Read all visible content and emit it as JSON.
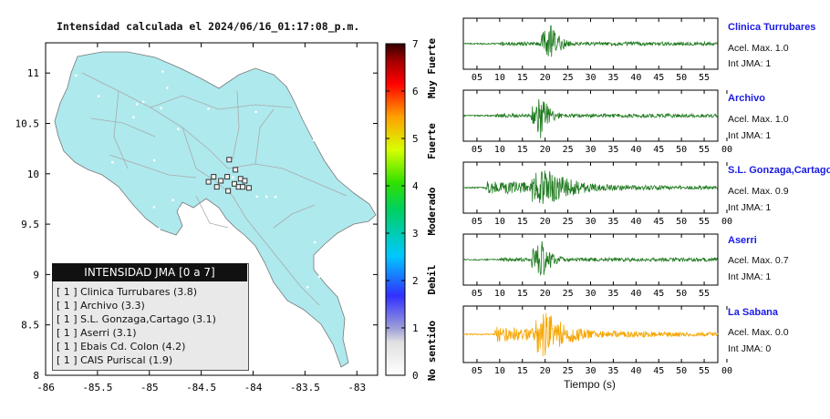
{
  "map": {
    "title": "Intensidad calculada el 2024/06/16_01:17:08_p.m.",
    "x_ticks": [
      "-86",
      "-85.5",
      "-85",
      "-84.5",
      "-84",
      "-83.5",
      "-83"
    ],
    "y_ticks": [
      "11",
      "10.5",
      "10",
      "9.5",
      "9",
      "8.5",
      "8"
    ],
    "colors": {
      "land": "#aee9ed",
      "water": "#ffffff",
      "roads": "#aaaaaa"
    }
  },
  "legend": {
    "title": "INTENSIDAD JMA [0 a 7]",
    "rows": [
      "[ 1 ]  Clinica Turrubares (3.8)",
      "[ 1 ]  Archivo (3.3)",
      "[ 1 ]  S.L. Gonzaga,Cartago (3.1)",
      "[ 1 ]  Aserri (3.1)",
      "[ 1 ]  Ebais Cd. Colon (4.2)",
      "[ 1 ]  CAIS Puriscal (1.9)"
    ]
  },
  "colorbar": {
    "ticks": [
      "0",
      "1",
      "2",
      "3",
      "4",
      "5",
      "6",
      "7"
    ],
    "labels": [
      "No sentido",
      "Debil",
      "Moderado",
      "Fuerte",
      "Muy Fuerte"
    ]
  },
  "chart_data": {
    "type": "scatter",
    "title": "Intensidad calculada el 2024/06/16_01:17:08_p.m.",
    "xlim": [
      -86,
      -82.8
    ],
    "ylim": [
      8,
      11.3
    ],
    "stations": [
      {
        "lon": -84.23,
        "lat": 10.14
      },
      {
        "lon": -84.17,
        "lat": 10.04
      },
      {
        "lon": -84.38,
        "lat": 9.97
      },
      {
        "lon": -84.25,
        "lat": 9.97
      },
      {
        "lon": -84.12,
        "lat": 9.95
      },
      {
        "lon": -84.43,
        "lat": 9.92
      },
      {
        "lon": -84.31,
        "lat": 9.93
      },
      {
        "lon": -84.18,
        "lat": 9.9
      },
      {
        "lon": -84.08,
        "lat": 9.93
      },
      {
        "lon": -84.35,
        "lat": 9.87
      },
      {
        "lon": -84.14,
        "lat": 9.87
      },
      {
        "lon": -84.1,
        "lat": 9.87
      },
      {
        "lon": -84.04,
        "lat": 9.86
      },
      {
        "lon": -84.24,
        "lat": 9.83
      }
    ]
  },
  "waveforms": {
    "x_label": "Tiempo (s)",
    "stations": [
      {
        "name": "Clinica Turrubares",
        "acel": "Acel. Max. 1.0",
        "int": "Int JMA: 1",
        "color": "#1f7a1f",
        "ticks": [
          "05",
          "10",
          "15",
          "20",
          "25",
          "30",
          "35",
          "40",
          "45",
          "50",
          "55"
        ],
        "t0": 0,
        "onset": 10,
        "peak": 21,
        "amp": 1.0,
        "decay": 0.16
      },
      {
        "name": "Archivo",
        "acel": "Acel. Max. 1.0",
        "int": "Int JMA: 1",
        "color": "#1f7a1f",
        "ticks": [
          "05",
          "10",
          "15",
          "20",
          "25",
          "30",
          "35",
          "40",
          "45",
          "50",
          "55",
          "00"
        ],
        "t0": 2,
        "onset": 9,
        "peak": 19,
        "amp": 1.0,
        "decay": 0.16
      },
      {
        "name": "S.L. Gonzaga,Cartago",
        "acel": "Acel. Max. 0.9",
        "int": "Int JMA: 1",
        "color": "#1f7a1f",
        "ticks": [
          "05",
          "10",
          "15",
          "20",
          "25",
          "30",
          "35",
          "40",
          "45",
          "50",
          "55",
          "00"
        ],
        "t0": 2,
        "onset": 7,
        "peak": 19,
        "amp": 1.0,
        "decay": 0.05
      },
      {
        "name": "Aserri",
        "acel": "Acel. Max. 0.7",
        "int": "Int JMA: 1",
        "color": "#1f7a1f",
        "ticks": [
          "05",
          "10",
          "15",
          "20",
          "25",
          "30",
          "35",
          "40",
          "45",
          "50",
          "55"
        ],
        "t0": 0,
        "onset": 10,
        "peak": 19,
        "amp": 1.0,
        "decay": 0.15
      },
      {
        "name": "La Sabana",
        "acel": "Acel. Max. 0.0",
        "int": "Int JMA: 0",
        "color": "#f5a500",
        "ticks": [
          "05",
          "10",
          "15",
          "20",
          "25",
          "30",
          "35",
          "40",
          "45",
          "50",
          "55",
          "00"
        ],
        "t0": 2,
        "onset": 9,
        "peak": 20,
        "amp": 1.0,
        "decay": 0.06
      }
    ]
  }
}
